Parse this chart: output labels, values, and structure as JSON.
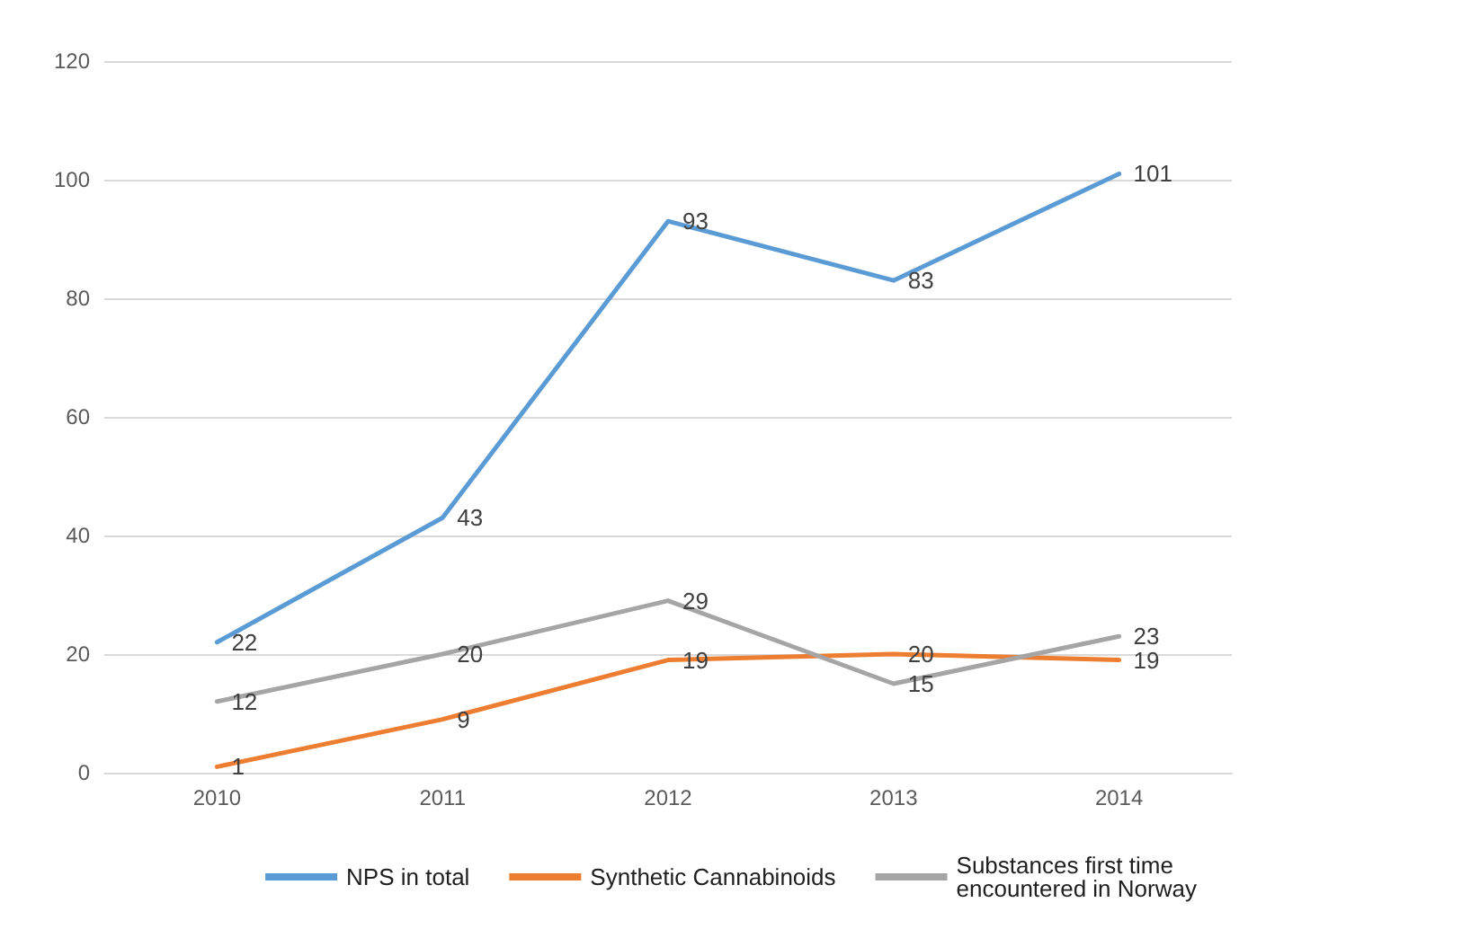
{
  "chart_data": {
    "type": "line",
    "categories": [
      "2010",
      "2011",
      "2012",
      "2013",
      "2014"
    ],
    "series": [
      {
        "name": "NPS in total",
        "color": "#5b9bd5",
        "values": [
          22,
          43,
          93,
          83,
          101
        ]
      },
      {
        "name": "Synthetic Cannabinoids",
        "color": "#ed7d31",
        "values": [
          1,
          9,
          19,
          20,
          19
        ]
      },
      {
        "name": "Substances first time encountered in Norway",
        "color": "#a5a5a5",
        "values": [
          12,
          20,
          29,
          15,
          23
        ]
      }
    ],
    "ylim": [
      0,
      120
    ],
    "yticks": [
      0,
      20,
      40,
      60,
      80,
      100,
      120
    ],
    "grid": "y",
    "legend": "bottom",
    "marker": "none",
    "line_style": "solid",
    "data_labels": true
  }
}
